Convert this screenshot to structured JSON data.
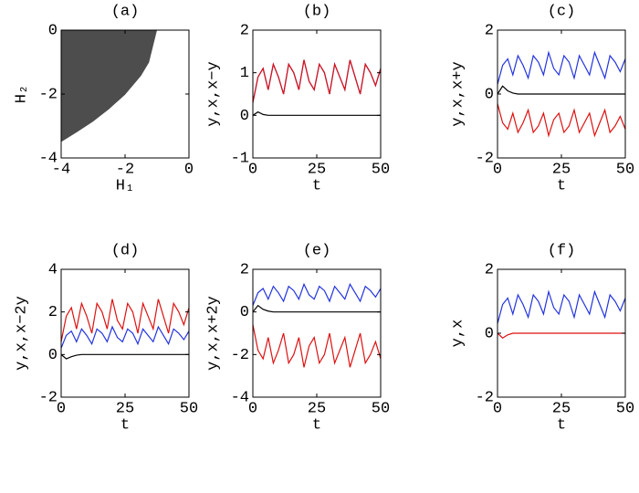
{
  "chart_data": [
    {
      "type": "area",
      "title": "(a)",
      "xlabel": "H₁",
      "ylabel": "H₂",
      "color": "#4d4d4d",
      "x": [
        -4,
        -3.5,
        -3,
        -2.5,
        -2,
        -1.5,
        -1.25,
        -1
      ],
      "values": [
        -3.5,
        -3.19,
        -2.86,
        -2.47,
        -2.02,
        -1.43,
        -1.01,
        0
      ],
      "xlim": [
        -4,
        0
      ],
      "ylim": [
        -4,
        0
      ],
      "xticks": [
        -4,
        -2,
        0
      ],
      "yticks": [
        -4,
        -2,
        0
      ]
    },
    {
      "type": "line",
      "title": "(b)",
      "xlabel": "t",
      "ylabel": "y,x,x−y",
      "x": [
        0,
        2,
        4,
        6,
        8,
        10,
        12,
        14,
        16,
        18,
        20,
        22,
        24,
        26,
        28,
        30,
        32,
        34,
        36,
        38,
        40,
        42,
        44,
        46,
        48,
        50
      ],
      "series": [
        {
          "name": "y",
          "color": "#2233dd",
          "values": [
            0.3,
            0.9,
            1.1,
            0.6,
            1.2,
            0.9,
            0.5,
            1.2,
            1.0,
            0.6,
            1.3,
            0.8,
            0.6,
            1.2,
            1.0,
            0.5,
            1.2,
            0.9,
            0.6,
            1.3,
            0.9,
            0.5,
            1.2,
            1.0,
            0.7,
            1.1
          ]
        },
        {
          "name": "x",
          "color": "#dd1111",
          "values": [
            0.3,
            0.9,
            1.1,
            0.6,
            1.2,
            0.9,
            0.5,
            1.2,
            1.0,
            0.6,
            1.3,
            0.8,
            0.6,
            1.2,
            1.0,
            0.5,
            1.2,
            0.9,
            0.6,
            1.3,
            0.9,
            0.5,
            1.2,
            1.0,
            0.7,
            1.1
          ]
        },
        {
          "name": "x-y",
          "color": "#000000",
          "values": [
            0,
            0.08,
            0.02,
            0,
            0,
            0,
            0,
            0,
            0,
            0,
            0,
            0,
            0,
            0,
            0,
            0,
            0,
            0,
            0,
            0,
            0,
            0,
            0,
            0,
            0,
            0
          ]
        }
      ],
      "xlim": [
        0,
        50
      ],
      "ylim": [
        -1,
        2
      ],
      "xticks": [
        0,
        25,
        50
      ],
      "yticks": [
        -1,
        0,
        1,
        2
      ]
    },
    {
      "type": "line",
      "title": "(c)",
      "xlabel": "t",
      "ylabel": "y,x,x+y",
      "x": [
        0,
        2,
        4,
        6,
        8,
        10,
        12,
        14,
        16,
        18,
        20,
        22,
        24,
        26,
        28,
        30,
        32,
        34,
        36,
        38,
        40,
        42,
        44,
        46,
        48,
        50
      ],
      "series": [
        {
          "name": "y",
          "color": "#2233dd",
          "values": [
            0.3,
            0.9,
            1.1,
            0.6,
            1.2,
            0.9,
            0.5,
            1.2,
            1.0,
            0.6,
            1.3,
            0.8,
            0.6,
            1.2,
            1.0,
            0.5,
            1.2,
            0.9,
            0.6,
            1.3,
            0.9,
            0.5,
            1.2,
            1.0,
            0.7,
            1.1
          ]
        },
        {
          "name": "x",
          "color": "#dd1111",
          "values": [
            -0.3,
            -0.9,
            -1.1,
            -0.6,
            -1.2,
            -0.9,
            -0.5,
            -1.2,
            -1.0,
            -0.6,
            -1.3,
            -0.8,
            -0.6,
            -1.2,
            -1.0,
            -0.5,
            -1.2,
            -0.9,
            -0.6,
            -1.3,
            -0.9,
            -0.5,
            -1.2,
            -1.0,
            -0.7,
            -1.1
          ]
        },
        {
          "name": "x+y",
          "color": "#000000",
          "values": [
            0,
            0.25,
            0.1,
            0.03,
            0,
            0,
            0,
            0,
            0,
            0,
            0,
            0,
            0,
            0,
            0,
            0,
            0,
            0,
            0,
            0,
            0,
            0,
            0,
            0,
            0,
            0
          ]
        }
      ],
      "xlim": [
        0,
        50
      ],
      "ylim": [
        -2,
        2
      ],
      "xticks": [
        0,
        25,
        50
      ],
      "yticks": [
        -2,
        0,
        2
      ]
    },
    {
      "type": "line",
      "title": "(d)",
      "xlabel": "t",
      "ylabel": "y,x,x−2y",
      "x": [
        0,
        2,
        4,
        6,
        8,
        10,
        12,
        14,
        16,
        18,
        20,
        22,
        24,
        26,
        28,
        30,
        32,
        34,
        36,
        38,
        40,
        42,
        44,
        46,
        48,
        50
      ],
      "series": [
        {
          "name": "y",
          "color": "#2233dd",
          "values": [
            0.3,
            0.9,
            1.1,
            0.6,
            1.2,
            0.9,
            0.5,
            1.2,
            1.0,
            0.6,
            1.3,
            0.8,
            0.6,
            1.2,
            1.0,
            0.5,
            1.2,
            0.9,
            0.6,
            1.3,
            0.9,
            0.5,
            1.2,
            1.0,
            0.7,
            1.1
          ]
        },
        {
          "name": "x",
          "color": "#dd1111",
          "values": [
            0.6,
            1.8,
            2.2,
            1.2,
            2.4,
            1.8,
            1.0,
            2.4,
            2.0,
            1.2,
            2.6,
            1.6,
            1.2,
            2.4,
            2.0,
            1.0,
            2.4,
            1.8,
            1.2,
            2.6,
            1.8,
            1.0,
            2.4,
            2.0,
            1.4,
            2.2
          ]
        },
        {
          "name": "x-2y",
          "color": "#000000",
          "values": [
            0,
            -0.2,
            -0.1,
            -0.03,
            0,
            0,
            0,
            0,
            0,
            0,
            0,
            0,
            0,
            0,
            0,
            0,
            0,
            0,
            0,
            0,
            0,
            0,
            0,
            0,
            0,
            0
          ]
        }
      ],
      "xlim": [
        0,
        50
      ],
      "ylim": [
        -2,
        4
      ],
      "xticks": [
        0,
        25,
        50
      ],
      "yticks": [
        -2,
        0,
        2,
        4
      ]
    },
    {
      "type": "line",
      "title": "(e)",
      "xlabel": "t",
      "ylabel": "y,x,x+2y",
      "x": [
        0,
        2,
        4,
        6,
        8,
        10,
        12,
        14,
        16,
        18,
        20,
        22,
        24,
        26,
        28,
        30,
        32,
        34,
        36,
        38,
        40,
        42,
        44,
        46,
        48,
        50
      ],
      "series": [
        {
          "name": "y",
          "color": "#2233dd",
          "values": [
            0.3,
            0.9,
            1.1,
            0.6,
            1.2,
            0.9,
            0.5,
            1.2,
            1.0,
            0.6,
            1.3,
            0.8,
            0.6,
            1.2,
            1.0,
            0.5,
            1.2,
            0.9,
            0.6,
            1.3,
            0.9,
            0.5,
            1.2,
            1.0,
            0.7,
            1.1
          ]
        },
        {
          "name": "x",
          "color": "#dd1111",
          "values": [
            -0.6,
            -1.8,
            -2.2,
            -1.2,
            -2.4,
            -1.8,
            -1.0,
            -2.4,
            -2.0,
            -1.2,
            -2.6,
            -1.6,
            -1.2,
            -2.4,
            -2.0,
            -1.0,
            -2.4,
            -1.8,
            -1.2,
            -2.6,
            -1.8,
            -1.0,
            -2.4,
            -2.0,
            -1.4,
            -2.2
          ]
        },
        {
          "name": "x+2y",
          "color": "#000000",
          "values": [
            0,
            0.3,
            0.12,
            0.04,
            0,
            0,
            0,
            0,
            0,
            0,
            0,
            0,
            0,
            0,
            0,
            0,
            0,
            0,
            0,
            0,
            0,
            0,
            0,
            0,
            0,
            0
          ]
        }
      ],
      "xlim": [
        0,
        50
      ],
      "ylim": [
        -4,
        2
      ],
      "xticks": [
        0,
        25,
        50
      ],
      "yticks": [
        -4,
        -2,
        0,
        2
      ]
    },
    {
      "type": "line",
      "title": "(f)",
      "xlabel": "t",
      "ylabel": "y,x",
      "x": [
        0,
        2,
        4,
        6,
        8,
        10,
        12,
        14,
        16,
        18,
        20,
        22,
        24,
        26,
        28,
        30,
        32,
        34,
        36,
        38,
        40,
        42,
        44,
        46,
        48,
        50
      ],
      "series": [
        {
          "name": "y",
          "color": "#2233dd",
          "values": [
            0.3,
            0.9,
            1.1,
            0.6,
            1.2,
            0.9,
            0.5,
            1.2,
            1.0,
            0.6,
            1.3,
            0.8,
            0.6,
            1.2,
            1.0,
            0.5,
            1.2,
            0.9,
            0.6,
            1.3,
            0.9,
            0.5,
            1.2,
            1.0,
            0.7,
            1.1
          ]
        },
        {
          "name": "x",
          "color": "#dd1111",
          "values": [
            0,
            -0.15,
            -0.05,
            0,
            0,
            0,
            0,
            0,
            0,
            0,
            0,
            0,
            0,
            0,
            0,
            0,
            0,
            0,
            0,
            0,
            0,
            0,
            0,
            0,
            0,
            0
          ]
        }
      ],
      "xlim": [
        0,
        50
      ],
      "ylim": [
        -2,
        2
      ],
      "xticks": [
        0,
        25,
        50
      ],
      "yticks": [
        -2,
        0,
        2
      ]
    }
  ]
}
